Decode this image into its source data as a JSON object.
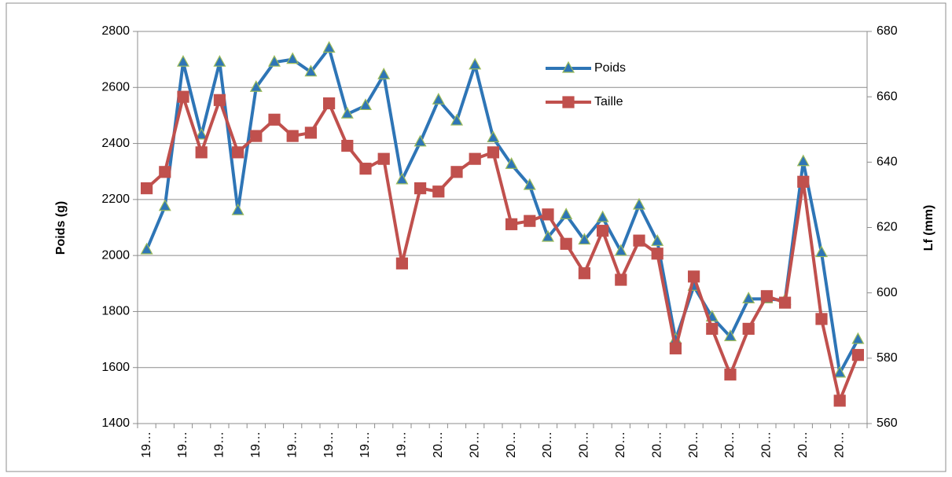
{
  "chart_data": {
    "type": "line",
    "y_label": "Poids (g)",
    "y2_label": "Lf (mm)",
    "categories": [
      "19…",
      null,
      "19…",
      null,
      "19…",
      null,
      "19…",
      null,
      "19…",
      null,
      "19…",
      null,
      "19…",
      null,
      "19…",
      null,
      "20…",
      null,
      "20…",
      null,
      "20…",
      null,
      "20…",
      null,
      "20…",
      null,
      "20…",
      null,
      "20…",
      null,
      "20…",
      null,
      "20…",
      null,
      "20…",
      null,
      "20…",
      null,
      "20…",
      null
    ],
    "series": [
      {
        "name": "Poids",
        "color": "#2e75b6",
        "marker": "triangle",
        "marker_fill": "#2e75b6",
        "marker_edge": "#9bbb59",
        "values": [
          2020,
          2175,
          2690,
          2430,
          2690,
          2160,
          2600,
          2690,
          2700,
          2655,
          2740,
          2505,
          2535,
          2645,
          2270,
          2405,
          2555,
          2480,
          2680,
          2420,
          2325,
          2250,
          2065,
          2145,
          2055,
          2135,
          2015,
          2180,
          2050,
          1700,
          1890,
          1780,
          1710,
          1845,
          1845,
          1840,
          2335,
          2010,
          1580,
          1700
        ]
      },
      {
        "name": "Taille",
        "color": "#c0504d",
        "marker": "square",
        "marker_fill": "#c0504d",
        "marker_edge": "#c0504d",
        "axis": "y2",
        "values": [
          632,
          637,
          660,
          643,
          659,
          643,
          648,
          653,
          648,
          649,
          658,
          645,
          638,
          641,
          609,
          632,
          631,
          637,
          641,
          643,
          621,
          622,
          624,
          615,
          606,
          619,
          604,
          616,
          612,
          583,
          605,
          589,
          575,
          589,
          599,
          597,
          634,
          592,
          567,
          581
        ]
      }
    ],
    "ylim": [
      1400,
      2800
    ],
    "yticks": [
      1400,
      1600,
      1800,
      2000,
      2200,
      2400,
      2600,
      2800
    ],
    "y2lim": [
      560,
      680
    ],
    "y2ticks": [
      560,
      580,
      600,
      620,
      640,
      660,
      680
    ],
    "grid": true,
    "legend": "top-center"
  }
}
